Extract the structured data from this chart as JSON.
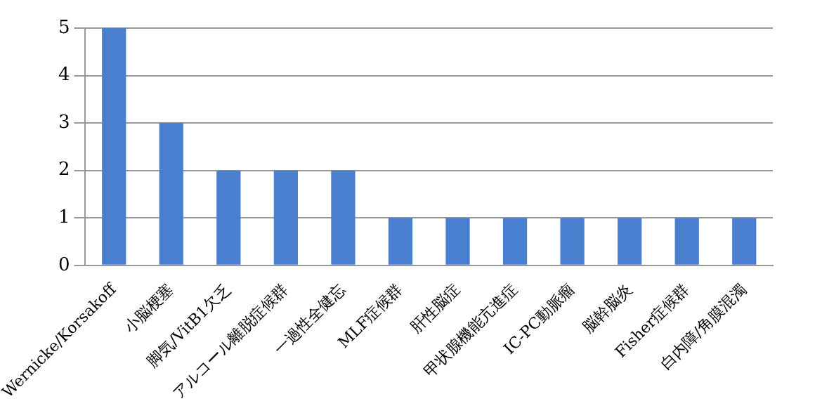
{
  "chart_data": {
    "type": "bar",
    "categories": [
      "Wernicke/Korsakoff",
      "小脳梗塞",
      "脚気/VitB1欠乏",
      "アルコール離脱症候群",
      "一過性全健忘",
      "MLF症候群",
      "肝性脳症",
      "甲状腺機能亢進症",
      "IC-PC動脈瘤",
      "脳幹脳炎",
      "Fisher症候群",
      "白内障/角膜混濁"
    ],
    "values": [
      5,
      3,
      2,
      2,
      2,
      1,
      1,
      1,
      1,
      1,
      1,
      1
    ],
    "color": "#4a7fd0",
    "ylim": [
      0,
      5
    ],
    "yticks": [
      0,
      1,
      2,
      3,
      4,
      5
    ],
    "grid": "y",
    "legend": false
  }
}
